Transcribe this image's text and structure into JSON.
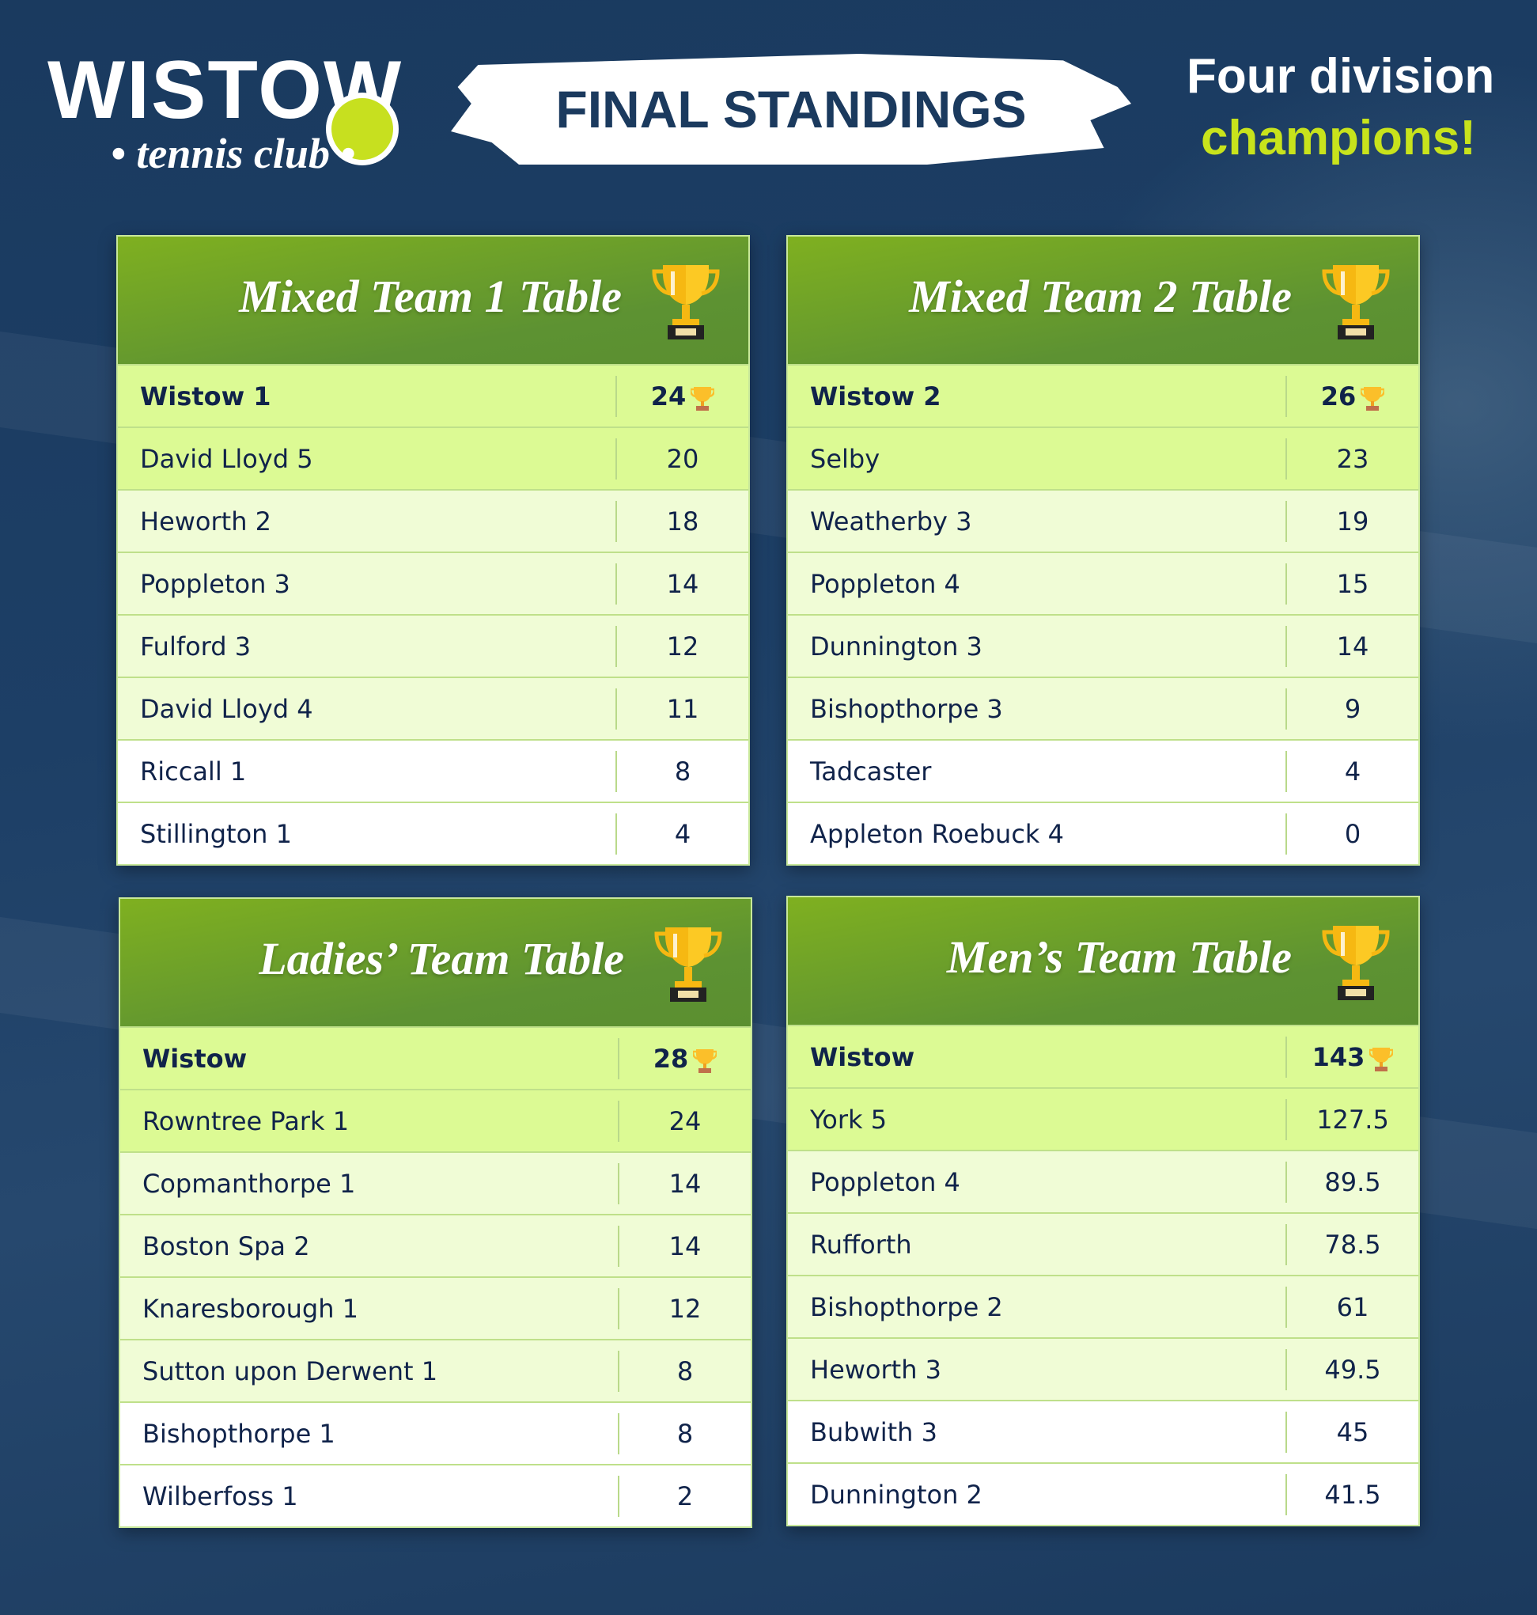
{
  "logo": {
    "word": "WISTOW",
    "sub": "• tennis club •"
  },
  "banner": "FINAL STANDINGS",
  "tagline": {
    "line1": "Four division",
    "line2": "champions!"
  },
  "colors": {
    "background": "#1c3b60",
    "accent": "#c8e31c",
    "header_green": "#6ea126",
    "leader_row": "#dcfa94"
  },
  "tables": [
    {
      "title": "Mixed Team 1 Table",
      "rows": [
        [
          "Wistow 1",
          "24"
        ],
        [
          "David Lloyd 5",
          "20"
        ],
        [
          "Heworth 2",
          "18"
        ],
        [
          "Poppleton 3",
          "14"
        ],
        [
          "Fulford 3",
          "12"
        ],
        [
          "David Lloyd 4",
          "11"
        ],
        [
          "Riccall 1",
          "8"
        ],
        [
          "Stillington 1",
          "4"
        ]
      ]
    },
    {
      "title": "Mixed Team 2 Table",
      "rows": [
        [
          "Wistow 2",
          "26"
        ],
        [
          "Selby",
          "23"
        ],
        [
          "Weatherby 3",
          "19"
        ],
        [
          "Poppleton 4",
          "15"
        ],
        [
          "Dunnington 3",
          "14"
        ],
        [
          "Bishopthorpe 3",
          "9"
        ],
        [
          "Tadcaster",
          "4"
        ],
        [
          "Appleton Roebuck 4",
          "0"
        ]
      ]
    },
    {
      "title": "Ladies’ Team Table",
      "rows": [
        [
          "Wistow",
          "28"
        ],
        [
          "Rowntree Park 1",
          "24"
        ],
        [
          "Copmanthorpe 1",
          "14"
        ],
        [
          "Boston Spa 2",
          "14"
        ],
        [
          "Knaresborough 1",
          "12"
        ],
        [
          "Sutton upon Derwent 1",
          "8"
        ],
        [
          "Bishopthorpe 1",
          "8"
        ],
        [
          "Wilberfoss 1",
          "2"
        ]
      ]
    },
    {
      "title": "Men’s Team Table",
      "rows": [
        [
          "Wistow",
          "143"
        ],
        [
          "York 5",
          "127.5"
        ],
        [
          "Poppleton 4",
          "89.5"
        ],
        [
          "Rufforth",
          "78.5"
        ],
        [
          "Bishopthorpe 2",
          "61"
        ],
        [
          "Heworth 3",
          "49.5"
        ],
        [
          "Bubwith 3",
          "45"
        ],
        [
          "Dunnington 2",
          "41.5"
        ]
      ]
    }
  ]
}
